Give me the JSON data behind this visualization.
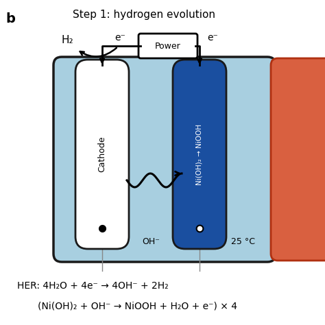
{
  "title": "Step 1: hydrogen evolution",
  "label_b": "b",
  "bg_color": "#ffffff",
  "cell_bg": "#a8cfe0",
  "cell_border": "#1a1a1a",
  "cathode_color": "#ffffff",
  "anode_color": "#1a4fa0",
  "equation1": "HER: 4H₂O + 4e⁻ → 4OH⁻ + 2H₂",
  "equation2": "(Ni(OH)₂ + OH⁻ → NiOOH + H₂O + e⁻) × 4",
  "power_label": "Power",
  "h2_label": "H₂",
  "e_left": "e⁻",
  "e_right": "e⁻",
  "oh_label": "OH⁻",
  "temp_label": "25 °C",
  "cathode_label": "Cathode",
  "anode_label": "Ni(OH)₂ → NiOOH",
  "right_bar_color": "#d96040"
}
